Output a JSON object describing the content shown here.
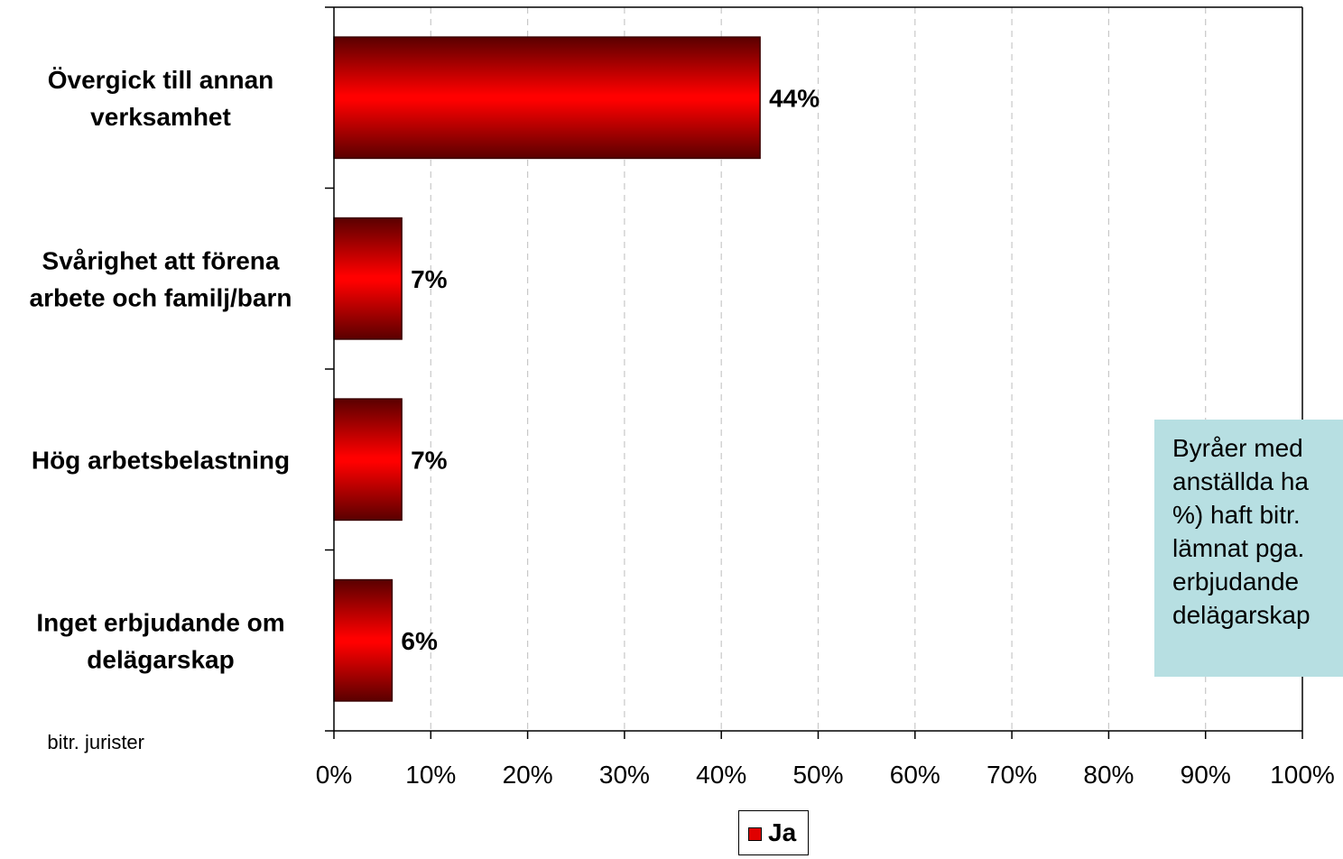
{
  "chart_data": {
    "type": "bar",
    "orientation": "horizontal",
    "categories": [
      "Övergick till annan\nverksamhet",
      "Svårighet att förena\narbete och familj/barn",
      "Hög arbetsbelastning",
      "Inget erbjudande om\ndelägarskap"
    ],
    "series": [
      {
        "name": "Ja",
        "values": [
          44,
          7,
          7,
          6
        ],
        "labels": [
          "44%",
          "7%",
          "7%",
          "6%"
        ],
        "color": "#e00000"
      }
    ],
    "xlim": [
      0,
      100
    ],
    "xticks": [
      "0%",
      "10%",
      "20%",
      "30%",
      "40%",
      "50%",
      "60%",
      "70%",
      "80%",
      "90%",
      "100%"
    ],
    "grid": "vertical-dashed",
    "legend": "bottom-center"
  },
  "note": {
    "text": "Byråer med\nanställda ha\n%) haft bitr.\nlämnat pga.\nerbjudande\ndelägarskap"
  },
  "footnote": "bitr. jurister",
  "legend": {
    "label": "Ja"
  }
}
